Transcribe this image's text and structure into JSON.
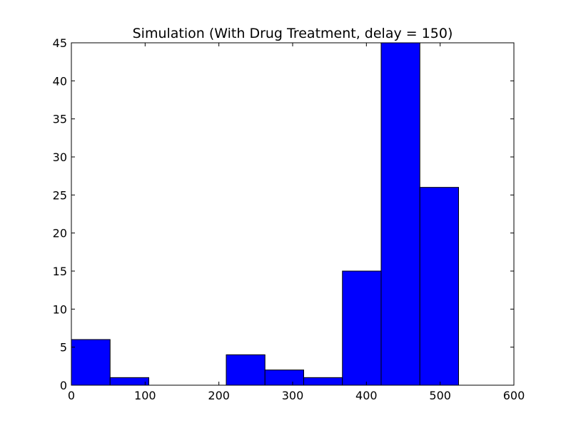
{
  "chart_data": {
    "type": "bar",
    "title": "Simulation (With Drug Treatment, delay = 150)",
    "xlabel": "",
    "ylabel": "",
    "xlim": [
      0,
      600
    ],
    "ylim": [
      0,
      45
    ],
    "xticks": [
      0,
      100,
      200,
      300,
      400,
      500,
      600
    ],
    "yticks": [
      0,
      5,
      10,
      15,
      20,
      25,
      30,
      35,
      40,
      45
    ],
    "grid": false,
    "bar_color": "#0000ff",
    "bins": [
      {
        "x0": 0,
        "x1": 52.5,
        "value": 6
      },
      {
        "x0": 52.5,
        "x1": 105,
        "value": 1
      },
      {
        "x0": 105,
        "x1": 157.5,
        "value": 0
      },
      {
        "x0": 157.5,
        "x1": 210,
        "value": 0
      },
      {
        "x0": 210,
        "x1": 262.5,
        "value": 4
      },
      {
        "x0": 262.5,
        "x1": 315,
        "value": 2
      },
      {
        "x0": 315,
        "x1": 367.5,
        "value": 1
      },
      {
        "x0": 367.5,
        "x1": 420,
        "value": 15
      },
      {
        "x0": 420,
        "x1": 472.5,
        "value": 45
      },
      {
        "x0": 472.5,
        "x1": 525,
        "value": 26
      }
    ]
  }
}
